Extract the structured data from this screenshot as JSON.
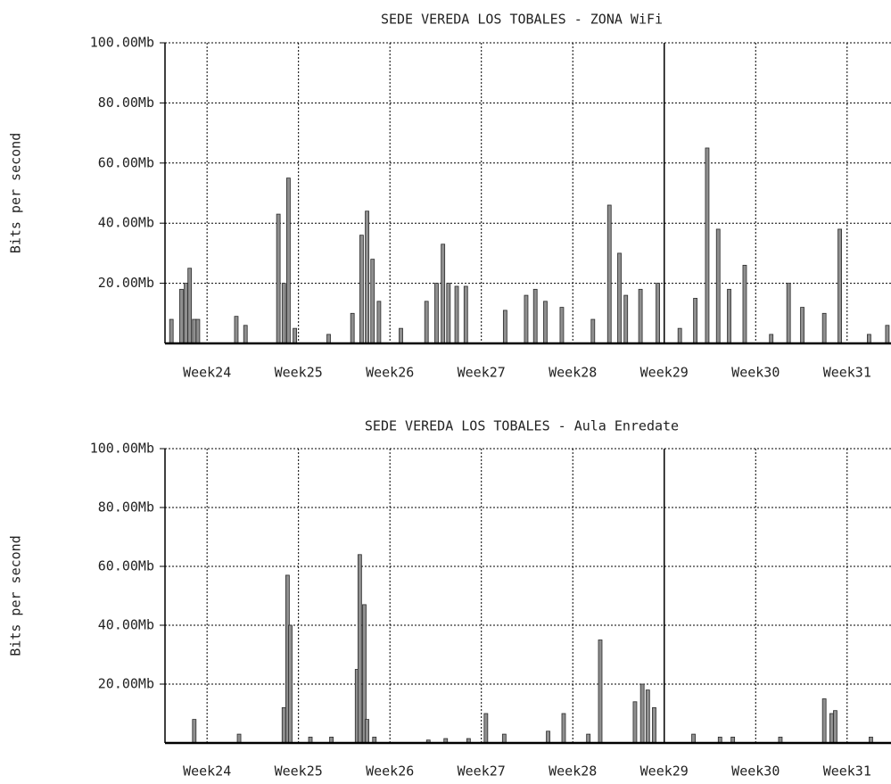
{
  "chart_data": [
    {
      "type": "bar",
      "title": "SEDE VEREDA LOS TOBALES - ZONA WiFi",
      "y_label": "Bits per second",
      "color": "#8f8f8f",
      "edge_color": "#2a2a2a",
      "grid": true,
      "vline": 29,
      "xlim": [
        23.54,
        31.48
      ],
      "xticks": [
        {
          "value": 24,
          "label": "Week24"
        },
        {
          "value": 25,
          "label": "Week25"
        },
        {
          "value": 26,
          "label": "Week26"
        },
        {
          "value": 27,
          "label": "Week27"
        },
        {
          "value": 28,
          "label": "Week28"
        },
        {
          "value": 29,
          "label": "Week29"
        },
        {
          "value": 30,
          "label": "Week30"
        },
        {
          "value": 31,
          "label": "Week31"
        }
      ],
      "ylim": [
        0,
        100
      ],
      "yticks": [
        {
          "value": 20,
          "label": "20.00Mb"
        },
        {
          "value": 40,
          "label": "40.00Mb"
        },
        {
          "value": 60,
          "label": "60.00Mb"
        },
        {
          "value": 80,
          "label": "80.00Mb"
        },
        {
          "value": 100,
          "label": "100.00Mb"
        }
      ],
      "x": [
        23.61,
        23.72,
        23.77,
        23.81,
        23.86,
        23.9,
        24.32,
        24.42,
        24.78,
        24.84,
        24.89,
        24.96,
        25.33,
        25.59,
        25.69,
        25.75,
        25.81,
        25.88,
        26.12,
        26.4,
        26.51,
        26.58,
        26.64,
        26.73,
        26.83,
        27.26,
        27.49,
        27.59,
        27.7,
        27.88,
        28.22,
        28.4,
        28.51,
        28.58,
        28.74,
        28.93,
        29.17,
        29.34,
        29.47,
        29.59,
        29.71,
        29.88,
        30.17,
        30.36,
        30.51,
        30.75,
        30.92,
        31.24,
        31.44
      ],
      "values": [
        8,
        18,
        20,
        25,
        8,
        8,
        9,
        6,
        43,
        20,
        55,
        5,
        3,
        10,
        36,
        44,
        28,
        14,
        5,
        14,
        20,
        33,
        20,
        19,
        19,
        11,
        16,
        18,
        14,
        12,
        8,
        46,
        30,
        16,
        18,
        20,
        5,
        15,
        65,
        38,
        18,
        26,
        3,
        20,
        12,
        10,
        38,
        3,
        6
      ]
    },
    {
      "type": "bar",
      "title": "SEDE VEREDA LOS TOBALES - Aula Enredate",
      "y_label": "Bits per second",
      "color": "#8f8f8f",
      "edge_color": "#2a2a2a",
      "grid": true,
      "vline": 29,
      "xlim": [
        23.54,
        31.48
      ],
      "xticks": [
        {
          "value": 24,
          "label": "Week24"
        },
        {
          "value": 25,
          "label": "Week25"
        },
        {
          "value": 26,
          "label": "Week26"
        },
        {
          "value": 27,
          "label": "Week27"
        },
        {
          "value": 28,
          "label": "Week28"
        },
        {
          "value": 29,
          "label": "Week29"
        },
        {
          "value": 30,
          "label": "Week30"
        },
        {
          "value": 31,
          "label": "Week31"
        }
      ],
      "ylim": [
        0,
        100
      ],
      "yticks": [
        {
          "value": 20,
          "label": "20.00Mb"
        },
        {
          "value": 40,
          "label": "40.00Mb"
        },
        {
          "value": 60,
          "label": "60.00Mb"
        },
        {
          "value": 80,
          "label": "80.00Mb"
        },
        {
          "value": 100,
          "label": "100.00Mb"
        }
      ],
      "x": [
        23.86,
        24.35,
        24.84,
        24.88,
        24.91,
        25.13,
        25.36,
        25.64,
        25.67,
        25.72,
        25.75,
        25.83,
        26.42,
        26.61,
        26.86,
        27.05,
        27.25,
        27.73,
        27.9,
        28.17,
        28.3,
        28.68,
        28.76,
        28.82,
        28.89,
        29.32,
        29.61,
        29.75,
        30.27,
        30.75,
        30.83,
        30.87,
        31.26
      ],
      "values": [
        8,
        3,
        12,
        57,
        40,
        2,
        2,
        25,
        64,
        47,
        8,
        2,
        1,
        1.5,
        1.5,
        10,
        3,
        4,
        10,
        3,
        35,
        14,
        20,
        18,
        12,
        3,
        2,
        2,
        2,
        15,
        10,
        11,
        2
      ]
    }
  ]
}
